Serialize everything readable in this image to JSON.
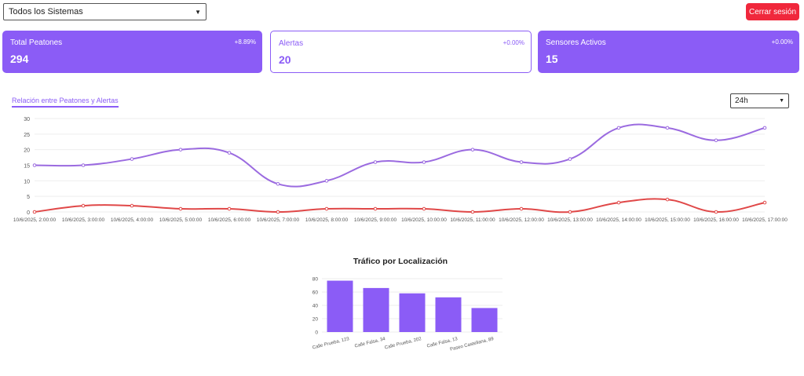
{
  "header": {
    "system_select": {
      "value": "Todos los Sistemas"
    },
    "logout_label": "Cerrar sesión"
  },
  "cards": [
    {
      "label": "Total Peatones",
      "value": "294",
      "change": "+8.89%",
      "style": "filled"
    },
    {
      "label": "Alertas",
      "value": "20",
      "change": "+0.00%",
      "style": "outline"
    },
    {
      "label": "Sensores Activos",
      "value": "15",
      "change": "+0.00%",
      "style": "filled"
    }
  ],
  "line_panel": {
    "tab_label": "Relación entre Peatones y Alertas",
    "range_select": {
      "value": "24h"
    }
  },
  "colors": {
    "accent": "#8b5cf6",
    "alert": "#e04848",
    "danger_button": "#f0283c"
  },
  "chart_data": [
    {
      "type": "line",
      "title": "",
      "xlabel": "",
      "ylabel": "",
      "ylim": [
        0,
        30
      ],
      "yticks": [
        0,
        5,
        10,
        15,
        20,
        25,
        30
      ],
      "grid": true,
      "legend": "none",
      "categories": [
        "10/6/2025, 2:00:00",
        "10/6/2025, 3:00:00",
        "10/6/2025, 4:00:00",
        "10/6/2025, 5:00:00",
        "10/6/2025, 6:00:00",
        "10/6/2025, 7:00:00",
        "10/6/2025, 8:00:00",
        "10/6/2025, 9:00:00",
        "10/6/2025, 10:00:00",
        "10/6/2025, 11:00:00",
        "10/6/2025, 12:00:00",
        "10/6/2025, 13:00:00",
        "10/6/2025, 14:00:00",
        "10/6/2025, 15:00:00",
        "10/6/2025, 16:00:00",
        "10/6/2025, 17:00:00"
      ],
      "series": [
        {
          "color": "#9b6be0",
          "values": [
            15,
            15,
            17,
            20,
            19,
            9,
            10,
            16,
            16,
            20,
            16,
            17,
            27,
            27,
            23,
            27
          ]
        },
        {
          "color": "#e04848",
          "values": [
            0,
            2,
            2,
            1,
            1,
            0,
            1,
            1,
            1,
            0,
            1,
            0,
            3,
            4,
            0,
            3
          ]
        }
      ]
    },
    {
      "type": "bar",
      "title": "Tráfico por Localización",
      "xlabel": "",
      "ylabel": "",
      "ylim": [
        0,
        80
      ],
      "yticks": [
        0,
        20,
        40,
        60,
        80
      ],
      "grid": true,
      "legend": "none",
      "color": "#8b5cf6",
      "categories": [
        "Calle Prueba, 123",
        "Calle Falsa, 34",
        "Calle Prueba, 202",
        "Calle Falsa, 13",
        "Paseo Castellana, 89"
      ],
      "values": [
        77,
        66,
        58,
        52,
        36
      ]
    }
  ]
}
